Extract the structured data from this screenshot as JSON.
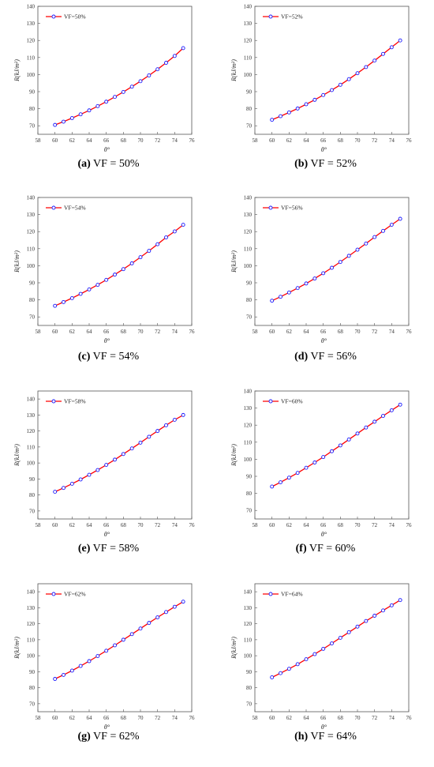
{
  "chart_data": [
    {
      "type": "line",
      "panel": "(a)",
      "caption": "VF = 50%",
      "legend": "VF=50%",
      "xlabel": "θ°",
      "ylabel": "R(kJ/m²)",
      "xlim": [
        58,
        76
      ],
      "ylim": [
        65,
        140
      ],
      "xticks": [
        58,
        60,
        62,
        64,
        66,
        68,
        70,
        72,
        74,
        76
      ],
      "yticks": [
        70,
        80,
        90,
        100,
        110,
        120,
        130,
        140
      ],
      "x": [
        60,
        61,
        62,
        63,
        64,
        65,
        66,
        67,
        68,
        69,
        70,
        71,
        72,
        73,
        74,
        75
      ],
      "y": [
        70.5,
        72.4,
        74.5,
        76.7,
        79.0,
        81.5,
        84.1,
        86.9,
        89.8,
        92.9,
        96.1,
        99.5,
        103.1,
        106.9,
        110.9,
        115.5
      ]
    },
    {
      "type": "line",
      "panel": "(b)",
      "caption": "VF = 52%",
      "legend": "VF=52%",
      "xlabel": "θ°",
      "ylabel": "R(kJ/m²)",
      "xlim": [
        58,
        76
      ],
      "ylim": [
        65,
        140
      ],
      "xticks": [
        58,
        60,
        62,
        64,
        66,
        68,
        70,
        72,
        74,
        76
      ],
      "yticks": [
        70,
        80,
        90,
        100,
        110,
        120,
        130,
        140
      ],
      "x": [
        60,
        61,
        62,
        63,
        64,
        65,
        66,
        67,
        68,
        69,
        70,
        71,
        72,
        73,
        74,
        75
      ],
      "y": [
        73.5,
        75.6,
        77.8,
        80.1,
        82.6,
        85.2,
        88.0,
        90.9,
        94.0,
        97.3,
        100.8,
        104.4,
        108.2,
        112.1,
        116.0,
        120.0
      ]
    },
    {
      "type": "line",
      "panel": "(c)",
      "caption": "VF = 54%",
      "legend": "VF=54%",
      "xlabel": "θ°",
      "ylabel": "R(kJ/m²)",
      "xlim": [
        58,
        76
      ],
      "ylim": [
        65,
        140
      ],
      "xticks": [
        58,
        60,
        62,
        64,
        66,
        68,
        70,
        72,
        74,
        76
      ],
      "yticks": [
        70,
        80,
        90,
        100,
        110,
        120,
        130,
        140
      ],
      "x": [
        60,
        61,
        62,
        63,
        64,
        65,
        66,
        67,
        68,
        69,
        70,
        71,
        72,
        73,
        74,
        75
      ],
      "y": [
        76.5,
        78.7,
        81.0,
        83.5,
        86.1,
        88.8,
        91.7,
        94.8,
        98.0,
        101.4,
        105.0,
        108.7,
        112.6,
        116.6,
        120.1,
        124.0
      ]
    },
    {
      "type": "line",
      "panel": "(d)",
      "caption": "VF = 56%",
      "legend": "VF=56%",
      "xlabel": "θ°",
      "ylabel": "R(kJ/m²)",
      "xlim": [
        58,
        76
      ],
      "ylim": [
        65,
        140
      ],
      "xticks": [
        58,
        60,
        62,
        64,
        66,
        68,
        70,
        72,
        74,
        76
      ],
      "yticks": [
        70,
        80,
        90,
        100,
        110,
        120,
        130,
        140
      ],
      "x": [
        60,
        61,
        62,
        63,
        64,
        65,
        66,
        67,
        68,
        69,
        70,
        71,
        72,
        73,
        74,
        75
      ],
      "y": [
        79.5,
        81.8,
        84.3,
        86.9,
        89.6,
        92.5,
        95.6,
        98.8,
        102.2,
        105.8,
        109.4,
        113.0,
        116.8,
        120.4,
        124.0,
        127.5
      ]
    },
    {
      "type": "line",
      "panel": "(e)",
      "caption": "VF = 58%",
      "legend": "VF=58%",
      "xlabel": "θ°",
      "ylabel": "R(kJ/m²)",
      "xlim": [
        58,
        76
      ],
      "ylim": [
        65,
        145
      ],
      "xticks": [
        58,
        60,
        62,
        64,
        66,
        68,
        70,
        72,
        74,
        76
      ],
      "yticks": [
        70,
        80,
        90,
        100,
        110,
        120,
        130,
        140
      ],
      "x": [
        60,
        61,
        62,
        63,
        64,
        65,
        66,
        67,
        68,
        69,
        70,
        71,
        72,
        73,
        74,
        75
      ],
      "y": [
        82.0,
        84.4,
        87.0,
        89.7,
        92.6,
        95.6,
        98.8,
        102.1,
        105.6,
        109.1,
        112.7,
        116.4,
        120.0,
        123.6,
        127.0,
        130.0
      ]
    },
    {
      "type": "line",
      "panel": "(f)",
      "caption": "VF = 60%",
      "legend": "VF=60%",
      "xlabel": "θ°",
      "ylabel": "R(kJ/m²)",
      "xlim": [
        58,
        76
      ],
      "ylim": [
        65,
        140
      ],
      "xticks": [
        58,
        60,
        62,
        64,
        66,
        68,
        70,
        72,
        74,
        76
      ],
      "yticks": [
        70,
        80,
        90,
        100,
        110,
        120,
        130,
        140
      ],
      "x": [
        60,
        61,
        62,
        63,
        64,
        65,
        66,
        67,
        68,
        69,
        70,
        71,
        72,
        73,
        74,
        75
      ],
      "y": [
        84.0,
        86.5,
        89.2,
        92.0,
        95.0,
        98.1,
        101.3,
        104.7,
        108.1,
        111.6,
        115.1,
        118.6,
        122.0,
        125.4,
        128.7,
        132.0
      ]
    },
    {
      "type": "line",
      "panel": "(g)",
      "caption": "VF = 62%",
      "legend": "VF=62%",
      "xlabel": "θ°",
      "ylabel": "R(kJ/m²)",
      "xlim": [
        58,
        76
      ],
      "ylim": [
        65,
        145
      ],
      "xticks": [
        58,
        60,
        62,
        64,
        66,
        68,
        70,
        72,
        74,
        76
      ],
      "yticks": [
        70,
        80,
        90,
        100,
        110,
        120,
        130,
        140
      ],
      "x": [
        60,
        61,
        62,
        63,
        64,
        65,
        66,
        67,
        68,
        69,
        70,
        71,
        72,
        73,
        74,
        75
      ],
      "y": [
        85.5,
        88.0,
        90.7,
        93.6,
        96.6,
        99.8,
        103.1,
        106.5,
        110.0,
        113.5,
        117.0,
        120.5,
        124.0,
        127.3,
        130.6,
        133.8
      ]
    },
    {
      "type": "line",
      "panel": "(h)",
      "caption": "VF = 64%",
      "legend": "VF=64%",
      "xlabel": "θ°",
      "ylabel": "R(kJ/m²)",
      "xlim": [
        58,
        76
      ],
      "ylim": [
        65,
        145
      ],
      "xticks": [
        58,
        60,
        62,
        64,
        66,
        68,
        70,
        72,
        74,
        76
      ],
      "yticks": [
        70,
        80,
        90,
        100,
        110,
        120,
        130,
        140
      ],
      "x": [
        60,
        61,
        62,
        63,
        64,
        65,
        66,
        67,
        68,
        69,
        70,
        71,
        72,
        73,
        74,
        75
      ],
      "y": [
        86.5,
        89.1,
        91.8,
        94.7,
        97.8,
        101.0,
        104.3,
        107.7,
        111.2,
        114.7,
        118.2,
        121.7,
        125.0,
        128.3,
        131.5,
        134.8
      ]
    }
  ],
  "colors": {
    "line": "#ff0000",
    "marker": "#1a1aff",
    "axis": "#555555",
    "grid": "#dddddd"
  }
}
